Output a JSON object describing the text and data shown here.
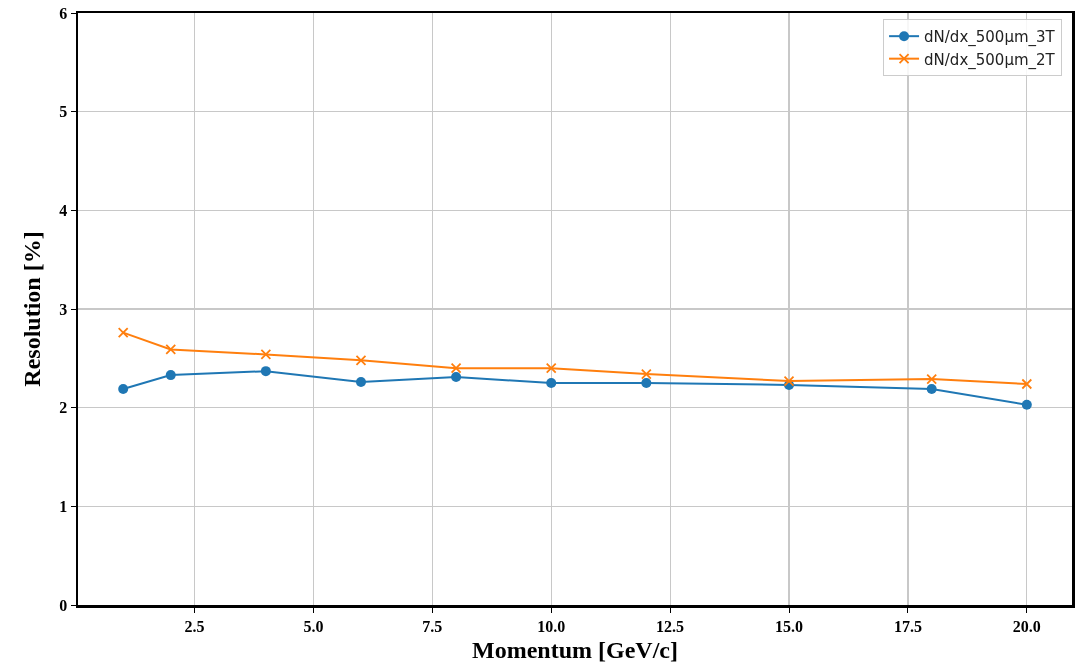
{
  "chart_data": {
    "type": "line",
    "xlabel": "Momentum [GeV/c]",
    "ylabel": "Resolution [%]",
    "x": [
      1,
      2,
      4,
      6,
      8,
      10,
      12,
      15,
      18,
      20
    ],
    "series": [
      {
        "name": "dN/dx_500μm_3T",
        "color": "#1f77b4",
        "marker": "circle",
        "values": [
          2.19,
          2.33,
          2.37,
          2.26,
          2.31,
          2.25,
          2.25,
          2.23,
          2.19,
          2.03
        ]
      },
      {
        "name": "dN/dx_500μm_2T",
        "color": "#ff7f0e",
        "marker": "cross",
        "values": [
          2.76,
          2.59,
          2.54,
          2.48,
          2.4,
          2.4,
          2.34,
          2.27,
          2.29,
          2.24
        ]
      }
    ],
    "xlim": [
      0.05,
      20.95
    ],
    "xticks": [
      {
        "value": 2.5,
        "label": "2.5"
      },
      {
        "value": 5,
        "label": "5.0"
      },
      {
        "value": 7.5,
        "label": "7.5"
      },
      {
        "value": 10,
        "label": "10.0"
      },
      {
        "value": 12.5,
        "label": "12.5"
      },
      {
        "value": 15,
        "label": "15.0"
      },
      {
        "value": 17.5,
        "label": "17.5"
      },
      {
        "value": 20,
        "label": "20.0"
      }
    ],
    "ylim": [
      0,
      6
    ],
    "yticks": [
      0,
      1,
      2,
      3,
      4,
      5,
      6
    ],
    "grid": true,
    "legend": "top right",
    "line_style": "solid"
  }
}
